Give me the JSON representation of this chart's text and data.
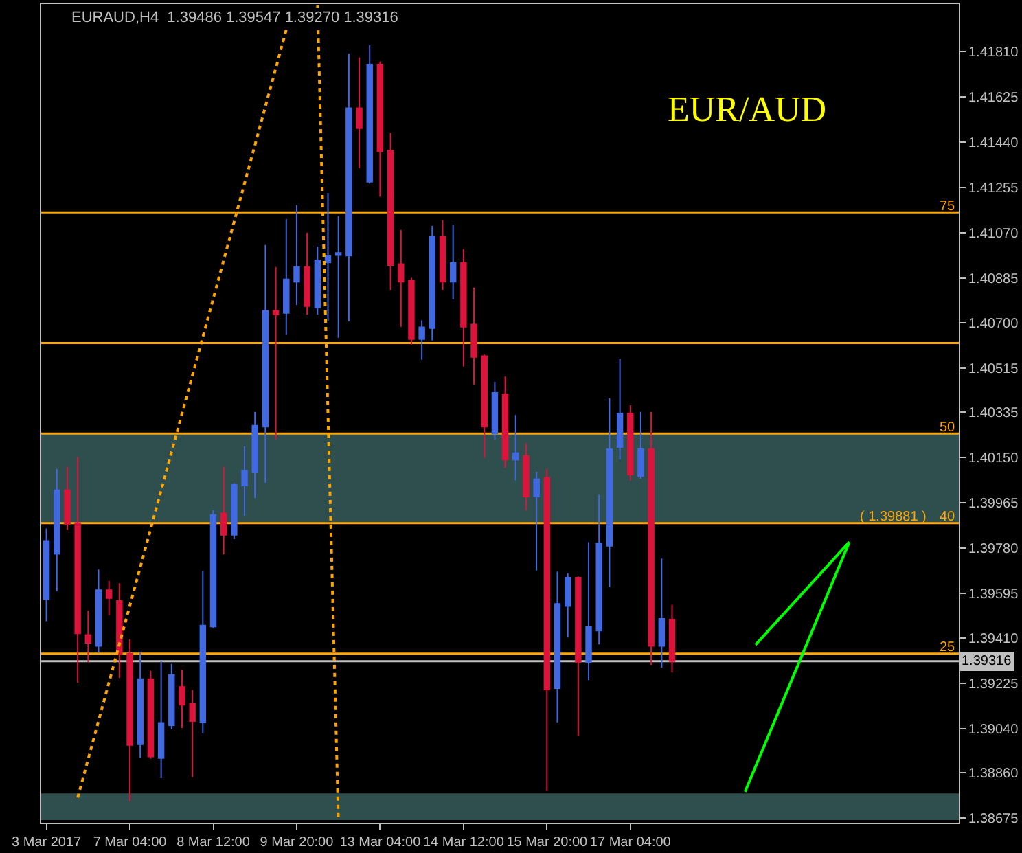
{
  "chart_data": {
    "type": "candlestick",
    "title": "EURAUD,H4  1.39486 1.39547 1.39270 1.39316",
    "categories": [
      "3 Mar 2017",
      null,
      null,
      null,
      null,
      null,
      null,
      null,
      "7 Mar 04:00",
      null,
      null,
      null,
      null,
      null,
      null,
      null,
      "8 Mar 12:00",
      null,
      null,
      null,
      null,
      null,
      null,
      null,
      "9 Mar 20:00",
      null,
      null,
      null,
      null,
      null,
      null,
      null,
      "13 Mar 04:00",
      null,
      null,
      null,
      null,
      null,
      null,
      null,
      "14 Mar 12:00",
      null,
      null,
      null,
      null,
      null,
      null,
      null,
      "15 Mar 20:00",
      null,
      null,
      null,
      null,
      null,
      null,
      null,
      "17 Mar 04:00",
      null,
      null,
      null,
      null,
      null,
      null,
      null,
      null,
      null,
      null,
      null,
      null,
      null,
      null,
      null,
      null,
      null,
      null,
      null,
      null,
      null,
      null,
      null,
      null,
      null,
      null,
      null,
      null,
      null,
      null,
      null
    ],
    "ohlc": [
      [
        1.3957,
        1.39859,
        1.3948,
        1.39809
      ],
      [
        1.39755,
        1.40102,
        1.39603,
        1.40016
      ],
      [
        1.40016,
        1.40112,
        1.39854,
        1.39878
      ],
      [
        1.39882,
        1.40152,
        1.39228,
        1.3943
      ],
      [
        1.39424,
        1.39523,
        1.39312,
        1.39391
      ],
      [
        1.39379,
        1.39691,
        1.3935,
        1.39607
      ],
      [
        1.39607,
        1.39645,
        1.39503,
        1.39575
      ],
      [
        1.39563,
        1.39635,
        1.39247,
        1.39346
      ],
      [
        1.39346,
        1.39406,
        1.38743,
        1.38973
      ],
      [
        1.38976,
        1.39355,
        1.3892,
        1.39243
      ],
      [
        1.39243,
        1.39277,
        1.38917,
        1.38926
      ],
      [
        1.3892,
        1.39316,
        1.38838,
        1.39064
      ],
      [
        1.39054,
        1.39305,
        1.39038,
        1.3926
      ],
      [
        1.39211,
        1.39282,
        1.39043,
        1.39138
      ],
      [
        1.39142,
        1.39198,
        1.38842,
        1.39071
      ],
      [
        1.39066,
        1.39686,
        1.39021,
        1.39462
      ],
      [
        1.39458,
        1.39934,
        1.39452,
        1.39915
      ],
      [
        1.39921,
        1.40112,
        1.39753,
        1.39833
      ],
      [
        1.39833,
        1.40045,
        1.39816,
        1.40039
      ],
      [
        1.40035,
        1.40196,
        1.3991,
        1.40095
      ],
      [
        1.40091,
        1.40336,
        1.39984,
        1.4028
      ],
      [
        1.40276,
        1.41019,
        1.40046,
        1.4075
      ],
      [
        1.4075,
        1.40929,
        1.40224,
        1.40735
      ],
      [
        1.40741,
        1.41126,
        1.40651,
        1.40879
      ],
      [
        1.40869,
        1.41182,
        1.40774,
        1.40929
      ],
      [
        1.40929,
        1.41069,
        1.40735,
        1.40769
      ],
      [
        1.40763,
        1.41013,
        1.40735,
        1.40957
      ],
      [
        1.40948,
        1.41232,
        1.40707,
        1.40974
      ],
      [
        1.40978,
        1.41137,
        1.4064,
        1.40987
      ],
      [
        1.40976,
        1.41803,
        1.40707,
        1.41579
      ],
      [
        1.41579,
        1.41787,
        1.41334,
        1.41497
      ],
      [
        1.41278,
        1.41837,
        1.41271,
        1.41758
      ],
      [
        1.41758,
        1.4177,
        1.41217,
        1.41402
      ],
      [
        1.41406,
        1.41478,
        1.40836,
        1.40937
      ],
      [
        1.40941,
        1.41081,
        1.40685,
        1.40869
      ],
      [
        1.40873,
        1.40885,
        1.40612,
        1.40634
      ],
      [
        1.40634,
        1.40711,
        1.4055,
        1.40683
      ],
      [
        1.40679,
        1.41097,
        1.40629,
        1.41053
      ],
      [
        1.41053,
        1.4112,
        1.40836,
        1.40869
      ],
      [
        1.40869,
        1.41103,
        1.40797,
        1.40946
      ],
      [
        1.40946,
        1.41002,
        1.40522,
        1.40685
      ],
      [
        1.40694,
        1.40845,
        1.40449,
        1.40561
      ],
      [
        1.40565,
        1.40571,
        1.40149,
        1.40276
      ],
      [
        1.40248,
        1.40459,
        1.40224,
        1.40414
      ],
      [
        1.40408,
        1.40481,
        1.40108,
        1.40141
      ],
      [
        1.40141,
        1.40324,
        1.40056,
        1.40168
      ],
      [
        1.40156,
        1.40207,
        1.39934,
        1.3999
      ],
      [
        1.3999,
        1.40091,
        1.39687,
        1.40061
      ],
      [
        1.40067,
        1.40102,
        1.38786,
        1.392
      ],
      [
        1.39206,
        1.39682,
        1.39066,
        1.39551
      ],
      [
        1.39542,
        1.39676,
        1.39413,
        1.39658
      ],
      [
        1.39658,
        1.39663,
        1.3901,
        1.39312
      ],
      [
        1.39312,
        1.39803,
        1.39239,
        1.39456
      ],
      [
        1.39441,
        1.39996,
        1.39385,
        1.39798
      ],
      [
        1.39788,
        1.40392,
        1.3962,
        1.40184
      ],
      [
        1.40192,
        1.40554,
        1.40141,
        1.4033
      ],
      [
        1.4033,
        1.40364,
        1.40056,
        1.4008
      ],
      [
        1.40074,
        1.40336,
        1.40063,
        1.40184
      ],
      [
        1.40184,
        1.40336,
        1.39301,
        1.39379
      ],
      [
        1.39379,
        1.39736,
        1.3929,
        1.3949
      ],
      [
        1.39486,
        1.39547,
        1.3927,
        1.39316
      ],
      null,
      null,
      null,
      null,
      null,
      null,
      null,
      null,
      null,
      null,
      null,
      null,
      null,
      null,
      null,
      null,
      null,
      null,
      null,
      null,
      null,
      null,
      null,
      null,
      null,
      null,
      null
    ],
    "colors": [
      "#4169e1",
      "#4169e1",
      "#dc143c",
      "#dc143c",
      "#dc143c",
      "#4169e1",
      "#dc143c",
      "#dc143c",
      "#dc143c",
      "#4169e1",
      "#dc143c",
      "#4169e1",
      "#4169e1",
      "#dc143c",
      "#dc143c",
      "#4169e1",
      "#4169e1",
      "#dc143c",
      "#4169e1",
      "#4169e1",
      "#4169e1",
      "#4169e1",
      "#dc143c",
      "#4169e1",
      "#4169e1",
      "#dc143c",
      "#4169e1",
      "#4169e1",
      "#4169e1",
      "#4169e1",
      "#dc143c",
      "#4169e1",
      "#dc143c",
      "#dc143c",
      "#dc143c",
      "#dc143c",
      "#4169e1",
      "#4169e1",
      "#dc143c",
      "#4169e1",
      "#dc143c",
      "#dc143c",
      "#dc143c",
      "#4169e1",
      "#dc143c",
      "#4169e1",
      "#dc143c",
      "#4169e1",
      "#dc143c",
      "#4169e1",
      "#4169e1",
      "#dc143c",
      "#4169e1",
      "#4169e1",
      "#4169e1",
      "#4169e1",
      "#dc143c",
      "#4169e1",
      "#dc143c",
      "#4169e1",
      "#dc143c",
      null,
      null,
      null,
      null,
      null,
      null,
      null,
      null,
      null,
      null,
      null,
      null,
      null,
      null,
      null,
      null,
      null,
      null,
      null,
      null,
      null,
      null,
      null,
      null,
      null,
      null,
      null
    ],
    "series": [
      {
        "type": "line",
        "color": "#ffa500",
        "line_style": "dotted",
        "values": [
          null,
          null,
          null,
          1.38758,
          null,
          null,
          null,
          null,
          null,
          null,
          null,
          null,
          null,
          null,
          null,
          null,
          null,
          null,
          null,
          null,
          null,
          null,
          null,
          1.419,
          null,
          null,
          null,
          null,
          null,
          null,
          null,
          null,
          null,
          null,
          null,
          null,
          null,
          null,
          null,
          null,
          null,
          null,
          null,
          null,
          null,
          null,
          null,
          null,
          null,
          null,
          null,
          null,
          null,
          null,
          null,
          null,
          null,
          null,
          null,
          null,
          null,
          null,
          null,
          null,
          null,
          null,
          null,
          null,
          null,
          null,
          null,
          null,
          null,
          null,
          null,
          null,
          null,
          null,
          null,
          null,
          null,
          null,
          null,
          null,
          null,
          null,
          null,
          null
        ]
      },
      {
        "type": "line",
        "color": "#ffa500",
        "line_style": "dotted",
        "values": [
          null,
          null,
          null,
          null,
          null,
          null,
          null,
          null,
          null,
          null,
          null,
          null,
          null,
          null,
          null,
          null,
          null,
          null,
          null,
          null,
          null,
          null,
          null,
          null,
          null,
          null,
          1.41999,
          null,
          1.38664,
          null,
          null,
          null,
          null,
          null,
          null,
          null,
          null,
          null,
          null,
          null,
          null,
          null,
          null,
          null,
          null,
          null,
          null,
          null,
          null,
          null,
          null,
          null,
          null,
          null,
          null,
          null,
          null,
          null,
          null,
          null,
          null,
          null,
          null,
          null,
          null,
          null,
          null,
          null,
          null,
          null,
          null,
          null,
          null,
          null,
          null,
          null,
          null,
          null,
          null,
          null,
          null,
          null,
          null,
          null,
          null,
          null,
          null,
          null
        ]
      },
      {
        "type": "line",
        "color": "#00ff00",
        "line_style": "solid",
        "values": [
          null,
          null,
          null,
          null,
          null,
          null,
          null,
          null,
          null,
          null,
          null,
          null,
          null,
          null,
          null,
          null,
          null,
          null,
          null,
          null,
          null,
          null,
          null,
          null,
          null,
          null,
          null,
          null,
          null,
          null,
          null,
          null,
          null,
          null,
          null,
          null,
          null,
          null,
          null,
          null,
          null,
          null,
          null,
          null,
          null,
          null,
          null,
          null,
          null,
          null,
          null,
          null,
          null,
          null,
          null,
          null,
          null,
          null,
          null,
          null,
          null,
          null,
          null,
          null,
          null,
          null,
          null,
          null,
          1.39383,
          null,
          null,
          null,
          null,
          null,
          null,
          null,
          null,
          1.39804,
          null,
          null,
          null,
          null,
          null,
          null,
          null,
          null,
          null,
          null
        ]
      },
      {
        "type": "line",
        "color": "#00ff00",
        "line_style": "solid",
        "values": [
          null,
          null,
          null,
          null,
          null,
          null,
          null,
          null,
          null,
          null,
          null,
          null,
          null,
          null,
          null,
          null,
          null,
          null,
          null,
          null,
          null,
          null,
          null,
          null,
          null,
          null,
          null,
          null,
          null,
          null,
          null,
          null,
          null,
          null,
          null,
          null,
          null,
          null,
          null,
          null,
          null,
          null,
          null,
          null,
          null,
          null,
          null,
          null,
          null,
          null,
          null,
          null,
          null,
          null,
          null,
          null,
          null,
          null,
          null,
          null,
          null,
          null,
          null,
          null,
          null,
          null,
          null,
          1.38782,
          null,
          null,
          null,
          null,
          null,
          null,
          null,
          null,
          null,
          1.39804,
          null,
          null,
          null,
          null,
          null,
          null,
          null,
          null,
          null,
          null
        ]
      }
    ],
    "ylim": [
      1.38655,
      1.42005
    ],
    "yticks": [
      {
        "value": 1.4181,
        "label": "1.41810"
      },
      1.41625,
      {
        "value": 1.4144,
        "label": "1.41440"
      },
      1.41255,
      {
        "value": 1.4107,
        "label": "1.41070"
      },
      1.40885,
      {
        "value": 1.407,
        "label": "1.40700"
      },
      1.40515,
      1.40335,
      {
        "value": 1.4015,
        "label": "1.40150"
      },
      1.39965,
      {
        "value": 1.3978,
        "label": "1.39780"
      },
      1.39595,
      {
        "value": 1.3941,
        "label": "1.39410"
      },
      1.39225,
      {
        "value": 1.3904,
        "label": "1.39040"
      },
      {
        "value": 1.3886,
        "label": "1.38860"
      },
      1.38675
    ],
    "ref_lines": [
      {
        "axis": "y",
        "value": 1.41153,
        "color": "#ffa500"
      },
      {
        "axis": "y",
        "value": 1.40618,
        "color": "#ffa500"
      },
      {
        "axis": "y",
        "value": 1.40248,
        "color": "#ffa500"
      },
      {
        "axis": "y",
        "value": 1.39881,
        "color": "#ffa500"
      },
      {
        "axis": "y",
        "value": 1.39347,
        "color": "#ffa500"
      },
      {
        "axis": "y",
        "value": 1.39316,
        "label": "1.39316",
        "color": "#c0c0c0"
      }
    ],
    "bands": [
      {
        "axis": "y",
        "from": 1.39881,
        "to": 1.40248,
        "color": "#2f4f4f"
      },
      {
        "axis": "y",
        "from": 1.38666,
        "to": 1.38775,
        "color": "#2f4f4f"
      }
    ],
    "annotations": [
      "EUR/AUD",
      {
        "text": "75",
        "y": 1.41153
      },
      {
        "text": "50",
        "y": 1.40248
      },
      {
        "text": "40",
        "y": 1.39881
      },
      {
        "text": "( 1.39881 )",
        "y": 1.39881
      },
      {
        "text": "25",
        "y": 1.39347
      }
    ],
    "grid": false
  }
}
